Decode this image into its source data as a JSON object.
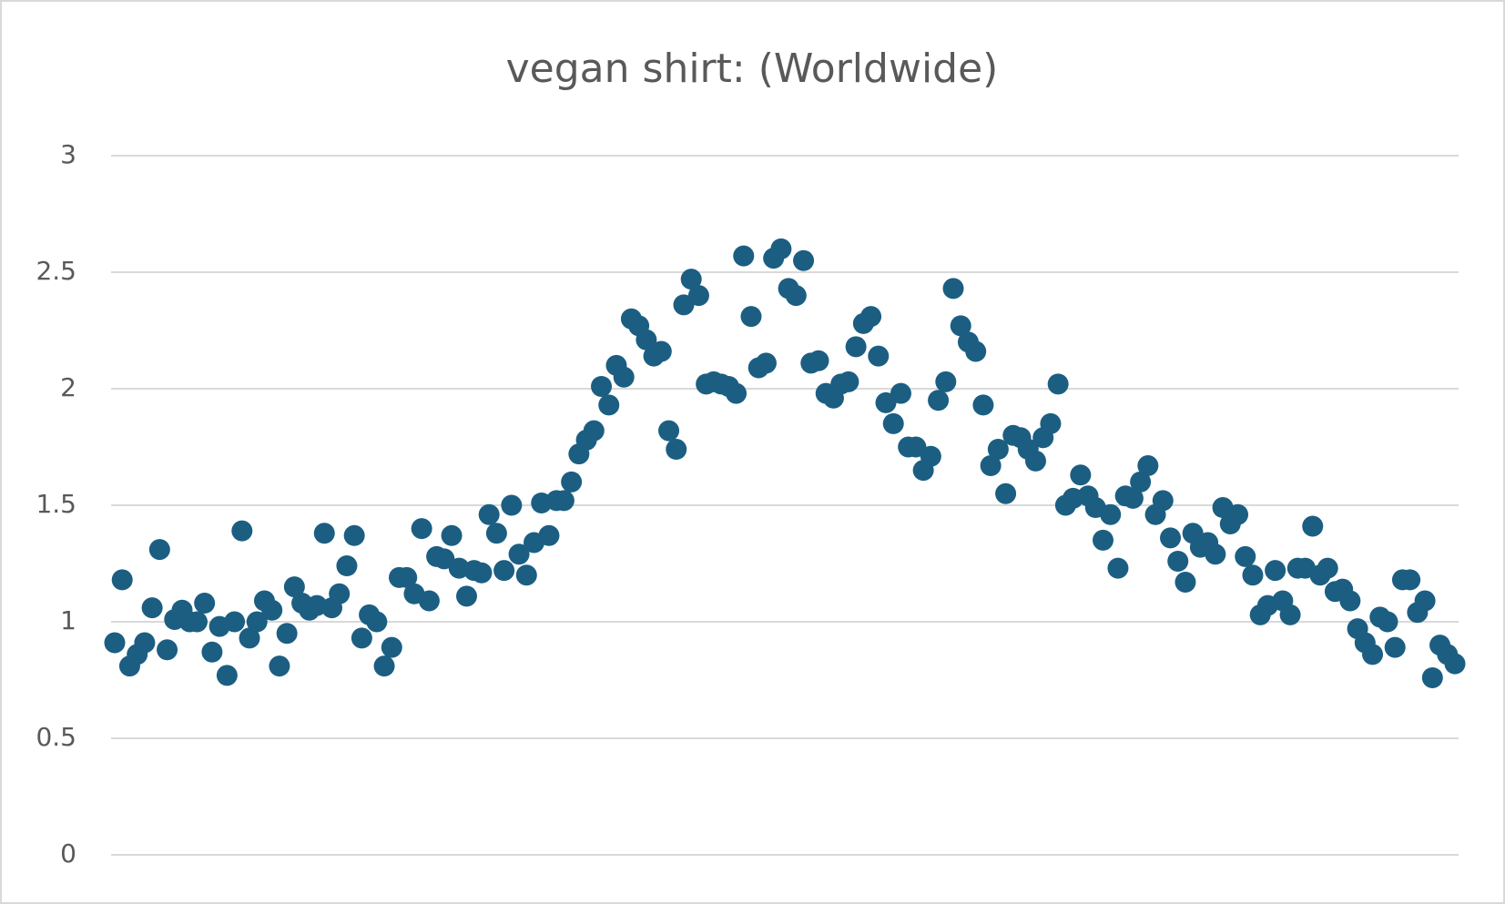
{
  "chart_data": {
    "type": "scatter",
    "title": "vegan shirt: (Worldwide)",
    "color": "#1b5e82",
    "ylim": [
      0,
      3
    ],
    "yticks": [
      0,
      0.5,
      1,
      1.5,
      2,
      2.5,
      3
    ],
    "grid": true,
    "values": [
      0.91,
      1.18,
      0.81,
      0.86,
      0.91,
      1.06,
      1.31,
      0.88,
      1.01,
      1.05,
      1.0,
      1.0,
      1.08,
      0.87,
      0.98,
      0.77,
      1.0,
      1.39,
      0.93,
      1.0,
      1.09,
      1.05,
      0.81,
      0.95,
      1.15,
      1.08,
      1.05,
      1.07,
      1.38,
      1.06,
      1.12,
      1.24,
      1.37,
      0.93,
      1.03,
      1.0,
      0.81,
      0.89,
      1.19,
      1.19,
      1.12,
      1.4,
      1.09,
      1.28,
      1.27,
      1.37,
      1.23,
      1.11,
      1.22,
      1.21,
      1.46,
      1.38,
      1.22,
      1.5,
      1.29,
      1.2,
      1.34,
      1.51,
      1.37,
      1.52,
      1.52,
      1.6,
      1.72,
      1.78,
      1.82,
      2.01,
      1.93,
      2.1,
      2.05,
      2.3,
      2.27,
      2.21,
      2.14,
      2.16,
      1.82,
      1.74,
      2.36,
      2.47,
      2.4,
      2.02,
      2.03,
      2.02,
      2.01,
      1.98,
      2.57,
      2.31,
      2.09,
      2.11,
      2.56,
      2.6,
      2.43,
      2.4,
      2.55,
      2.11,
      2.12,
      1.98,
      1.96,
      2.02,
      2.03,
      2.18,
      2.28,
      2.31,
      2.14,
      1.94,
      1.85,
      1.98,
      1.75,
      1.75,
      1.65,
      1.71,
      1.95,
      2.03,
      2.43,
      2.27,
      2.2,
      2.16,
      1.93,
      1.67,
      1.74,
      1.55,
      1.8,
      1.79,
      1.74,
      1.69,
      1.79,
      1.85,
      2.02,
      1.5,
      1.53,
      1.63,
      1.54,
      1.49,
      1.35,
      1.46,
      1.23,
      1.54,
      1.53,
      1.6,
      1.67,
      1.46,
      1.52,
      1.36,
      1.26,
      1.17,
      1.38,
      1.32,
      1.34,
      1.29,
      1.49,
      1.42,
      1.46,
      1.28,
      1.2,
      1.03,
      1.07,
      1.22,
      1.09,
      1.03,
      1.23,
      1.23,
      1.41,
      1.2,
      1.23,
      1.13,
      1.14,
      1.09,
      0.97,
      0.91,
      0.86,
      1.02,
      1.0,
      0.89,
      1.18,
      1.18,
      1.04,
      1.09,
      0.76,
      0.9,
      0.86,
      0.82
    ]
  }
}
